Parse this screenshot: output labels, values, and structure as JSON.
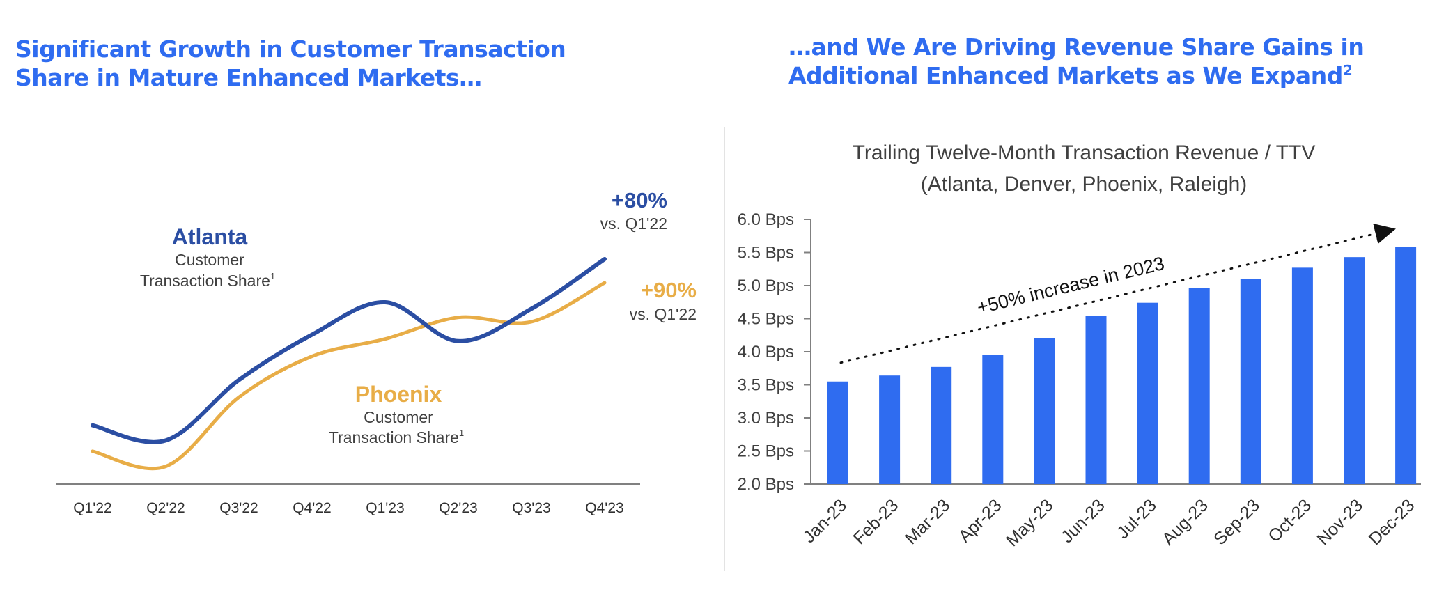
{
  "left_panel": {
    "title_line1": "Significant Growth in Customer Transaction",
    "title_line2": "Share in Mature Enhanced Markets…"
  },
  "right_panel": {
    "title_line1": "…and We Are Driving Revenue Share Gains in",
    "title_line2": "Additional Enhanced Markets as We Expand",
    "title_footnote": "2"
  },
  "colors": {
    "title_blue": "#2f6cf0",
    "atlanta": "#2b4ea3",
    "phoenix": "#e8ad47",
    "bar": "#2f6cf0",
    "axis": "#808080",
    "text": "#404040"
  },
  "chart_data": [
    {
      "type": "line",
      "title": "",
      "categories": [
        "Q1'22",
        "Q2'22",
        "Q3'22",
        "Q4'22",
        "Q1'23",
        "Q2'23",
        "Q3'23",
        "Q4'23"
      ],
      "y_axis_shown": false,
      "ylim": [
        0,
        100
      ],
      "series": [
        {
          "name": "Atlanta",
          "subtitle_line1": "Customer",
          "subtitle_line2": "Transaction Share",
          "footnote": "1",
          "values": [
            23,
            16,
            44,
            65,
            80,
            62,
            77,
            100
          ],
          "change_label": "+80%",
          "change_sub": "vs. Q1'22"
        },
        {
          "name": "Phoenix",
          "subtitle_line1": "Customer",
          "subtitle_line2": "Transaction Share",
          "footnote": "1",
          "values": [
            11,
            4,
            36,
            55,
            63,
            73,
            71,
            89
          ],
          "change_label": "+90%",
          "change_sub": "vs. Q1'22"
        }
      ]
    },
    {
      "type": "bar",
      "title_line1": "Trailing Twelve-Month Transaction Revenue / TTV",
      "title_line2": "(Atlanta, Denver, Phoenix, Raleigh)",
      "categories": [
        "Jan-23",
        "Feb-23",
        "Mar-23",
        "Apr-23",
        "May-23",
        "Jun-23",
        "Jul-23",
        "Aug-23",
        "Sep-23",
        "Oct-23",
        "Nov-23",
        "Dec-23"
      ],
      "values": [
        3.55,
        3.64,
        3.77,
        3.95,
        4.2,
        4.54,
        4.74,
        4.96,
        5.1,
        5.27,
        5.43,
        5.58
      ],
      "ylim": [
        2.0,
        6.0
      ],
      "y_ticks": [
        2.0,
        2.5,
        3.0,
        3.5,
        4.0,
        4.5,
        5.0,
        5.5,
        6.0
      ],
      "y_tick_labels": [
        "2.0 Bps",
        "2.5 Bps",
        "3.0 Bps",
        "3.5 Bps",
        "4.0 Bps",
        "4.5 Bps",
        "5.0 Bps",
        "5.5 Bps",
        "6.0 Bps"
      ],
      "annotation": "+50% increase in 2023"
    }
  ]
}
